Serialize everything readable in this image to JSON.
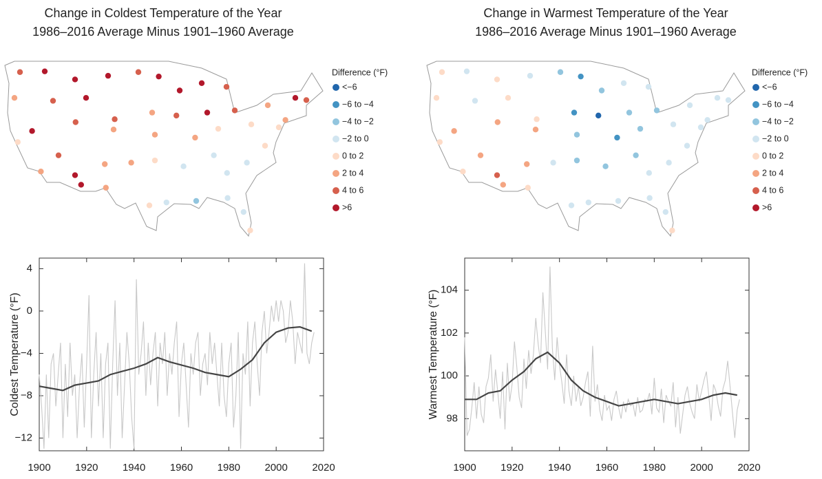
{
  "chart_data": [
    {
      "type": "map",
      "title": "Change in Coldest Temperature of the Year",
      "subtitle": "1986–2016 Average Minus 1901–1960 Average",
      "legend_title": "Difference (°F)",
      "legend": {
        "labels": [
          "<−6",
          "−6 to −4",
          "−4 to −2",
          "−2 to 0",
          "0 to 2",
          "2 to 4",
          "4 to 6",
          ">6"
        ],
        "colors": [
          "#2166ac",
          "#4393c3",
          "#92c5de",
          "#d1e5f0",
          "#fddbc7",
          "#f4a582",
          "#d6604d",
          "#b2182b"
        ]
      },
      "bins": [
        -6,
        -4,
        -2,
        0,
        2,
        4,
        6
      ],
      "points": {
        "lon": [
          -122,
          -117.5,
          -112,
          -106,
          -100.5,
          -96.8,
          -93,
          -89,
          -84.5,
          -123,
          -116,
          -110,
          -104.8,
          -98,
          -93.6,
          -88,
          -83,
          -77,
          -72,
          -70,
          -122.4,
          -119.8,
          -111.9,
          -105,
          -97.5,
          -90.2,
          -86,
          -80,
          -75,
          -73.8,
          -118.2,
          -115,
          -112,
          -106.6,
          -101.8,
          -97.5,
          -92.3,
          -86.8,
          -84.4,
          -80.8,
          -77.5,
          -110.9,
          -106.4,
          -98.5,
          -95.4,
          -90,
          -84.3,
          -81.4,
          -80.2
        ],
        "lat": [
          47.5,
          47.6,
          46.5,
          47,
          47.5,
          46.9,
          45,
          46,
          45.5,
          44,
          43.6,
          44,
          41.1,
          42,
          41.6,
          42,
          42.3,
          43,
          44,
          43.7,
          38,
          39.5,
          40.7,
          39.7,
          39,
          38.6,
          39.8,
          40.4,
          40,
          41,
          34,
          36.2,
          33.5,
          35,
          35.2,
          35.5,
          34.7,
          36.2,
          33.8,
          35.2,
          37.5,
          32.2,
          31.8,
          29.4,
          29.8,
          30,
          30.4,
          28.5,
          26
        ],
        "values": [
          5,
          7,
          6.5,
          7,
          5,
          7,
          6,
          7,
          5,
          3,
          5,
          7,
          4,
          3,
          5,
          6.5,
          4,
          2,
          7,
          5,
          1,
          7,
          5,
          3,
          3,
          2,
          1,
          1,
          0.5,
          3,
          2,
          5,
          6.5,
          3,
          2,
          1,
          -1,
          -0.5,
          -1.5,
          -1,
          1,
          7,
          2,
          1,
          -1,
          -2.5,
          -1,
          -0.5,
          1
        ]
      }
    },
    {
      "type": "map",
      "title": "Change in Warmest Temperature of the Year",
      "subtitle": "1986–2016 Average Minus 1901–1960 Average",
      "legend_title": "Difference (°F)",
      "legend": {
        "labels": [
          "<−6",
          "−6 to −4",
          "−4 to −2",
          "−2 to 0",
          "0 to 2",
          "2 to 4",
          "4 to 6",
          ">6"
        ],
        "colors": [
          "#2166ac",
          "#4393c3",
          "#92c5de",
          "#d1e5f0",
          "#fddbc7",
          "#f4a582",
          "#d6604d",
          "#b2182b"
        ]
      },
      "bins": [
        -6,
        -4,
        -2,
        0,
        2,
        4,
        6
      ],
      "points": {
        "lon": [
          -122,
          -117.5,
          -112,
          -106,
          -100.5,
          -96.8,
          -93,
          -89,
          -84.5,
          -123,
          -116,
          -110,
          -104.8,
          -98,
          -93.6,
          -88,
          -83,
          -77,
          -72,
          -70,
          -122.4,
          -119.8,
          -111.9,
          -105,
          -97.5,
          -90.2,
          -86,
          -80,
          -75,
          -73.8,
          -118.2,
          -115,
          -112,
          -106.6,
          -101.8,
          -97.5,
          -92.3,
          -86.8,
          -84.4,
          -80.8,
          -77.5,
          -110.9,
          -106.4,
          -98.5,
          -95.4,
          -90,
          -84.3,
          -81.4,
          -80.2
        ],
        "lat": [
          47.5,
          47.6,
          46.5,
          47,
          47.5,
          46.9,
          45,
          46,
          45.5,
          44,
          43.6,
          44,
          41.1,
          42,
          41.6,
          42,
          42.3,
          43,
          44,
          43.7,
          38,
          39.5,
          40.7,
          39.7,
          39,
          38.6,
          39.8,
          40.4,
          40,
          41,
          34,
          36.2,
          33.5,
          35,
          35.2,
          35.5,
          34.7,
          36.2,
          33.8,
          35.2,
          37.5,
          32.2,
          31.8,
          29.4,
          29.8,
          30,
          30.4,
          28.5,
          26
        ],
        "values": [
          1,
          -1,
          1,
          -0.5,
          -3,
          -4.5,
          -3,
          -1,
          -1.5,
          1,
          -1,
          0.5,
          1,
          -5,
          -6.5,
          -4,
          -3,
          -1,
          -2,
          -1,
          1,
          3,
          2,
          3,
          -3,
          -4.5,
          -3,
          -2,
          -1,
          -1.5,
          1,
          3,
          5,
          3,
          -1,
          -3,
          -2.5,
          -3,
          -1.5,
          -1,
          -0.5,
          3,
          1,
          -1,
          -1,
          -1,
          -0.5,
          -1,
          0.5
        ]
      }
    },
    {
      "type": "line",
      "ylabel": "Coldest Temperature (°F)",
      "xlim": [
        1900,
        2020
      ],
      "xticks": [
        1900,
        1920,
        1940,
        1960,
        1980,
        2000,
        2020
      ],
      "ylim": [
        -13.2,
        5
      ],
      "yticks": [
        {
          "value": -12,
          "label": "−12"
        },
        {
          "value": -8,
          "label": "−8"
        },
        {
          "value": -4,
          "label": "−4"
        },
        0,
        4
      ],
      "series": [
        {
          "color": "#c8c8c8",
          "x": [
            1900,
            1901,
            1902,
            1903,
            1904,
            1905,
            1906,
            1907,
            1908,
            1909,
            1910,
            1911,
            1912,
            1913,
            1914,
            1915,
            1916,
            1917,
            1918,
            1919,
            1920,
            1921,
            1922,
            1923,
            1924,
            1925,
            1926,
            1927,
            1928,
            1929,
            1930,
            1931,
            1932,
            1933,
            1934,
            1935,
            1936,
            1937,
            1938,
            1939,
            1940,
            1941,
            1942,
            1943,
            1944,
            1945,
            1946,
            1947,
            1948,
            1949,
            1950,
            1951,
            1952,
            1953,
            1954,
            1955,
            1956,
            1957,
            1958,
            1959,
            1960,
            1961,
            1962,
            1963,
            1964,
            1965,
            1966,
            1967,
            1968,
            1969,
            1970,
            1971,
            1972,
            1973,
            1974,
            1975,
            1976,
            1977,
            1978,
            1979,
            1980,
            1981,
            1982,
            1983,
            1984,
            1985,
            1986,
            1987,
            1988,
            1989,
            1990,
            1991,
            1992,
            1993,
            1994,
            1995,
            1996,
            1997,
            1998,
            1999,
            2000,
            2001,
            2002,
            2003,
            2004,
            2005,
            2006,
            2007,
            2008,
            2009,
            2010,
            2011,
            2012,
            2013,
            2014,
            2015,
            2016
          ],
          "values": [
            -6,
            -9,
            -13,
            -6,
            -12,
            -5,
            -4,
            -9,
            -6,
            -3,
            -12,
            -5,
            -10,
            -3,
            -8,
            -6,
            -12,
            -7,
            -4,
            -11,
            -5,
            1.5,
            -12,
            -6,
            -2,
            -9,
            -4,
            -12,
            -5,
            -3,
            -13,
            -5,
            1,
            -8,
            -3,
            -12,
            -7,
            -2,
            -5,
            -10,
            -13,
            3,
            -6,
            -4,
            -1,
            -8,
            -3,
            -7,
            -4,
            -2,
            -9,
            -3,
            -5,
            -2,
            -8,
            -4,
            -6,
            -3,
            -1,
            -10,
            -5,
            -3,
            -7,
            -11,
            -4,
            -6,
            -3,
            -2,
            -8,
            -5,
            -4,
            -7,
            -2,
            -5,
            -3,
            -6,
            -9,
            -3,
            -8,
            -10,
            -5,
            -3,
            -11,
            -8,
            -2,
            -13,
            -4,
            -6,
            -1,
            -9,
            -3,
            -1,
            -5,
            -8,
            -2,
            0,
            -4,
            -2,
            0.5,
            -1,
            1,
            -1,
            1,
            0,
            -3,
            -2,
            1,
            -1,
            -5,
            -2,
            -3,
            -4,
            4.5,
            -4,
            -5,
            -3,
            -2
          ]
        },
        {
          "color": "#444444",
          "x": [
            1900,
            1905,
            1910,
            1915,
            1920,
            1925,
            1930,
            1935,
            1940,
            1945,
            1950,
            1955,
            1960,
            1965,
            1970,
            1975,
            1980,
            1985,
            1990,
            1995,
            2000,
            2005,
            2010,
            2015
          ],
          "values": [
            -7.1,
            -7.3,
            -7.5,
            -7,
            -6.8,
            -6.6,
            -6,
            -5.7,
            -5.4,
            -5,
            -4.4,
            -4.8,
            -5.1,
            -5.4,
            -5.8,
            -6,
            -6.2,
            -5.5,
            -4.6,
            -3,
            -2,
            -1.6,
            -1.5,
            -1.9
          ]
        }
      ]
    },
    {
      "type": "line",
      "ylabel": "Warmest Temperature (°F)",
      "xlim": [
        1900,
        2020
      ],
      "xticks": [
        1900,
        1920,
        1940,
        1960,
        1980,
        2000,
        2020
      ],
      "ylim": [
        96.5,
        105.5
      ],
      "yticks": [
        98,
        100,
        102,
        104
      ],
      "series": [
        {
          "color": "#c8c8c8",
          "x": [
            1900,
            1901,
            1902,
            1903,
            1904,
            1905,
            1906,
            1907,
            1908,
            1909,
            1910,
            1911,
            1912,
            1913,
            1914,
            1915,
            1916,
            1917,
            1918,
            1919,
            1920,
            1921,
            1922,
            1923,
            1924,
            1925,
            1926,
            1927,
            1928,
            1929,
            1930,
            1931,
            1932,
            1933,
            1934,
            1935,
            1936,
            1937,
            1938,
            1939,
            1940,
            1941,
            1942,
            1943,
            1944,
            1945,
            1946,
            1947,
            1948,
            1949,
            1950,
            1951,
            1952,
            1953,
            1954,
            1955,
            1956,
            1957,
            1958,
            1959,
            1960,
            1961,
            1962,
            1963,
            1964,
            1965,
            1966,
            1967,
            1968,
            1969,
            1970,
            1971,
            1972,
            1973,
            1974,
            1975,
            1976,
            1977,
            1978,
            1979,
            1980,
            1981,
            1982,
            1983,
            1984,
            1985,
            1986,
            1987,
            1988,
            1989,
            1990,
            1991,
            1992,
            1993,
            1994,
            1995,
            1996,
            1997,
            1998,
            1999,
            2000,
            2001,
            2002,
            2003,
            2004,
            2005,
            2006,
            2007,
            2008,
            2009,
            2010,
            2011,
            2012,
            2013,
            2014,
            2015,
            2016
          ],
          "values": [
            101.8,
            97.2,
            97.5,
            98.5,
            99.7,
            98,
            99.5,
            98.2,
            97.8,
            99.5,
            99.9,
            101,
            98.8,
            100.3,
            99.2,
            98,
            100.2,
            97.5,
            100.6,
            98.8,
            99.6,
            101.6,
            100.4,
            99,
            98.5,
            100.8,
            99.4,
            101.2,
            100.1,
            101,
            102.7,
            101.5,
            100.6,
            103.9,
            102.1,
            100.3,
            105.1,
            101.3,
            99.8,
            101.8,
            100.5,
            99.7,
            98.7,
            101,
            99.3,
            98.6,
            100,
            98.8,
            99.5,
            98.6,
            99,
            99.7,
            100.2,
            98.1,
            101.4,
            98.8,
            99.6,
            98.4,
            97.9,
            99.1,
            98.4,
            98.6,
            97.9,
            98.9,
            99.3,
            98.5,
            98,
            98.8,
            98.3,
            98.9,
            98.6,
            98.7,
            98.1,
            99,
            98.3,
            98.4,
            98.9,
            98.8,
            99.2,
            98.2,
            99.9,
            98.5,
            98.3,
            99.4,
            97.8,
            99.1,
            98.8,
            98.6,
            99.7,
            97.6,
            99,
            97.3,
            98.2,
            99.1,
            99.5,
            98.7,
            98.3,
            98,
            99.6,
            98.8,
            99.3,
            99.8,
            100.2,
            99.1,
            97.9,
            99.6,
            99.3,
            98.6,
            98.1,
            99.4,
            99.8,
            100.7,
            99.5,
            98.3,
            97.1,
            98.4,
            98.9
          ]
        },
        {
          "color": "#444444",
          "x": [
            1900,
            1905,
            1910,
            1915,
            1920,
            1925,
            1930,
            1935,
            1940,
            1945,
            1950,
            1955,
            1960,
            1965,
            1970,
            1975,
            1980,
            1985,
            1990,
            1995,
            2000,
            2005,
            2010,
            2015
          ],
          "values": [
            98.9,
            98.9,
            99.2,
            99.3,
            99.8,
            100.2,
            100.8,
            101.1,
            100.6,
            99.8,
            99.3,
            99,
            98.8,
            98.6,
            98.7,
            98.8,
            98.9,
            98.8,
            98.7,
            98.8,
            98.9,
            99.1,
            99.2,
            99.1
          ]
        }
      ]
    }
  ]
}
